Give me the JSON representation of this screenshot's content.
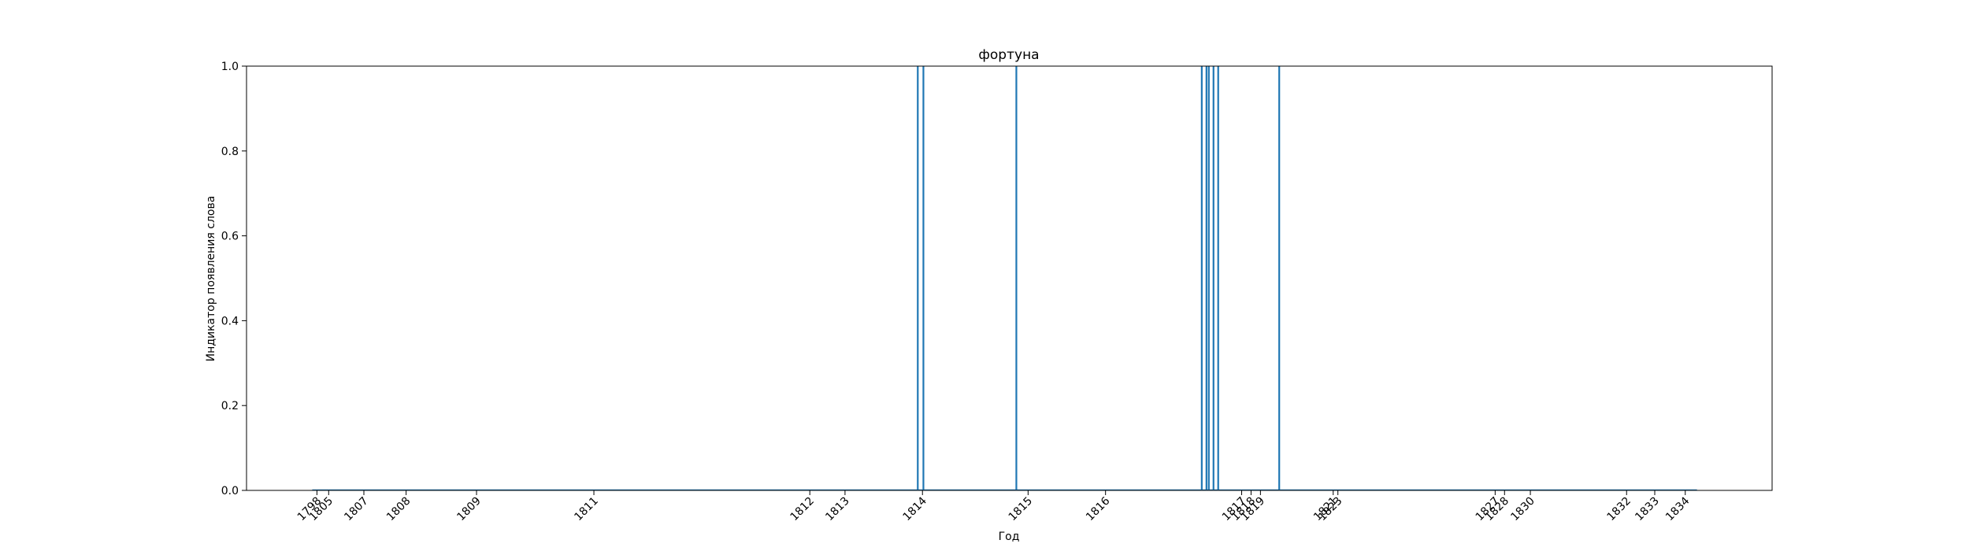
{
  "chart_data": {
    "type": "bar",
    "title": "фортуна",
    "xlabel": "Год",
    "ylabel": "Индикатор появления слова",
    "ylim": [
      0,
      1
    ],
    "yticks": [
      "0.0",
      "0.2",
      "0.4",
      "0.6",
      "0.8",
      "1.0"
    ],
    "xticks": [
      {
        "label": "1798",
        "x": 1804.6
      },
      {
        "label": "1805",
        "x": 1804.85
      },
      {
        "label": "1807",
        "x": 1805.6
      },
      {
        "label": "1808",
        "x": 1806.5
      },
      {
        "label": "1809",
        "x": 1808.0
      },
      {
        "label": "1811",
        "x": 1810.5
      },
      {
        "label": "1812",
        "x": 1815.1
      },
      {
        "label": "1813",
        "x": 1815.85
      },
      {
        "label": "1814",
        "x": 1817.5
      },
      {
        "label": "1815",
        "x": 1819.75
      },
      {
        "label": "1816",
        "x": 1821.4
      },
      {
        "label": "1817",
        "x": 1824.3
      },
      {
        "label": "1818",
        "x": 1824.5
      },
      {
        "label": "1819",
        "x": 1824.7
      },
      {
        "label": "1821",
        "x": 1826.25
      },
      {
        "label": "1823",
        "x": 1826.35
      },
      {
        "label": "1827",
        "x": 1829.7
      },
      {
        "label": "1828",
        "x": 1829.9
      },
      {
        "label": "1830",
        "x": 1830.45
      },
      {
        "label": "1832",
        "x": 1832.5
      },
      {
        "label": "1833",
        "x": 1833.1
      },
      {
        "label": "1834",
        "x": 1833.75
      }
    ],
    "xlim": [
      1803.1,
      1835.6
    ],
    "bar_color": "#1f77b4",
    "series": [
      {
        "x": [
          1817.4,
          1817.52,
          1819.5,
          1823.45,
          1823.55,
          1823.6,
          1823.7,
          1823.8,
          1825.1
        ],
        "values": [
          1,
          1,
          1,
          1,
          1,
          1,
          1,
          1,
          1
        ]
      }
    ],
    "baseline_range": [
      1804.5,
      1834.0
    ]
  }
}
